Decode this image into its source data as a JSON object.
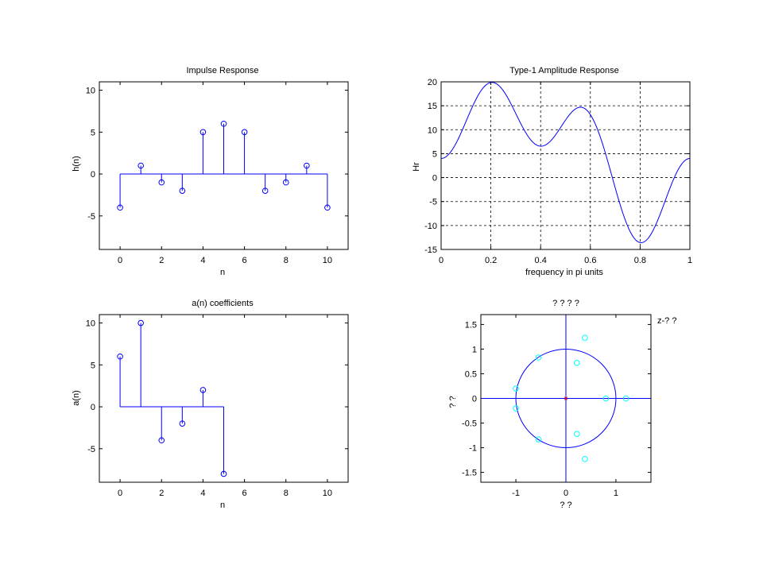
{
  "chart_data": [
    {
      "type": "stem",
      "title": "Impulse Response",
      "xlabel": "n",
      "ylabel": "h(n)",
      "xlim": [
        -1,
        11
      ],
      "ylim": [
        -9,
        11
      ],
      "xticks": [
        0,
        2,
        4,
        6,
        8,
        10
      ],
      "yticks": [
        -5,
        0,
        5,
        10
      ],
      "grid": false,
      "x": [
        0,
        1,
        2,
        3,
        4,
        5,
        6,
        7,
        8,
        9,
        10
      ],
      "values": [
        -4,
        1,
        -1,
        -2,
        5,
        6,
        5,
        -2,
        -1,
        1,
        -4
      ],
      "color": "#0000ff"
    },
    {
      "type": "line",
      "title": "Type-1 Amplitude Response",
      "xlabel": "frequency in pi units",
      "ylabel": "Hr",
      "xlim": [
        0,
        1
      ],
      "ylim": [
        -15,
        20
      ],
      "xticks": [
        0,
        0.2,
        0.4,
        0.6,
        0.8,
        1
      ],
      "yticks": [
        -15,
        -10,
        -5,
        0,
        5,
        10,
        15,
        20
      ],
      "grid": true,
      "a_coefficients": [
        6,
        10,
        -4,
        -2,
        2,
        -8
      ],
      "color": "#0000ff"
    },
    {
      "type": "stem",
      "title": "a(n) coefficients",
      "xlabel": "n",
      "ylabel": "a(n)",
      "xlim": [
        -1,
        11
      ],
      "ylim": [
        -9,
        11
      ],
      "xticks": [
        0,
        2,
        4,
        6,
        8,
        10
      ],
      "yticks": [
        -5,
        0,
        5,
        10
      ],
      "grid": false,
      "x": [
        0,
        1,
        2,
        3,
        4,
        5
      ],
      "values": [
        6,
        10,
        -4,
        -2,
        2,
        -8
      ],
      "color": "#0000ff"
    },
    {
      "type": "scatter",
      "title": "? ? ? ?",
      "xlabel": "? ?",
      "ylabel": "? ?",
      "corner_label": "z-?  ?",
      "xlim": [
        -1.7,
        1.7
      ],
      "ylim": [
        -1.7,
        1.7
      ],
      "xticks": [
        -1,
        0,
        1
      ],
      "yticks": [
        -1.5,
        -1,
        -0.5,
        0,
        0.5,
        1,
        1.5
      ],
      "grid": false,
      "unit_circle": true,
      "zeros": [
        {
          "x": 0.38,
          "y": 1.23
        },
        {
          "x": 0.38,
          "y": -1.23
        },
        {
          "x": 0.22,
          "y": 0.72
        },
        {
          "x": 0.22,
          "y": -0.72
        },
        {
          "x": -0.55,
          "y": 0.83
        },
        {
          "x": -0.55,
          "y": -0.83
        },
        {
          "x": -1.0,
          "y": 0.2
        },
        {
          "x": -1.0,
          "y": -0.2
        },
        {
          "x": 0.8,
          "y": 0.0
        },
        {
          "x": 1.2,
          "y": 0.0
        }
      ],
      "poles": [
        {
          "x": 0,
          "y": 0
        }
      ],
      "zero_color": "#00ffff",
      "pole_color": "#ff0000",
      "circle_color": "#0000ff"
    }
  ]
}
